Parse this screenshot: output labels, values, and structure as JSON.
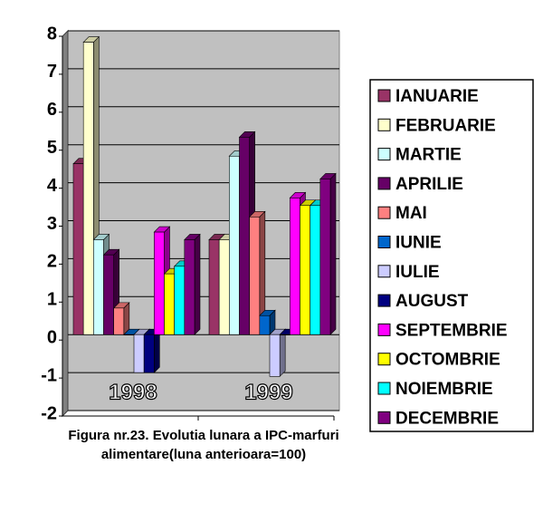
{
  "chart_data": {
    "type": "bar3d",
    "title": "Figura nr.23. Evolutia lunara a IPC-marfuri alimentare(luna anterioara=100)",
    "categories": [
      "1998",
      "1999"
    ],
    "series": [
      {
        "name": "IANUARIE",
        "color": "#993366",
        "values": [
          4.5,
          2.5
        ]
      },
      {
        "name": "FEBRUARIE",
        "color": "#FFFFCC",
        "values": [
          7.7,
          2.5
        ]
      },
      {
        "name": "MARTIE",
        "color": "#CCFFFF",
        "values": [
          2.5,
          4.7
        ]
      },
      {
        "name": "APRILIE",
        "color": "#660066",
        "values": [
          2.1,
          5.2
        ]
      },
      {
        "name": "MAI",
        "color": "#FF8080",
        "values": [
          0.7,
          3.1
        ]
      },
      {
        "name": "IUNIE",
        "color": "#0066CC",
        "values": [
          0,
          0.5
        ]
      },
      {
        "name": "IULIE",
        "color": "#CCCCFF",
        "values": [
          -1,
          -1.1
        ]
      },
      {
        "name": "AUGUST",
        "color": "#000080",
        "values": [
          -1,
          0
        ]
      },
      {
        "name": "SEPTEMBRIE",
        "color": "#FF00FF",
        "values": [
          2.7,
          3.6
        ]
      },
      {
        "name": "OCTOMBRIE",
        "color": "#FFFF00",
        "values": [
          1.6,
          3.4
        ]
      },
      {
        "name": "NOIEMBRIE",
        "color": "#00FFFF",
        "values": [
          1.8,
          3.4
        ]
      },
      {
        "name": "DECEMBRIE",
        "color": "#800080",
        "values": [
          2.5,
          4.1
        ]
      }
    ],
    "ylim": [
      -2,
      8
    ],
    "yticks": [
      -2,
      -1,
      0,
      1,
      2,
      3,
      4,
      5,
      6,
      7,
      8
    ],
    "grid": true,
    "legend": "right"
  }
}
